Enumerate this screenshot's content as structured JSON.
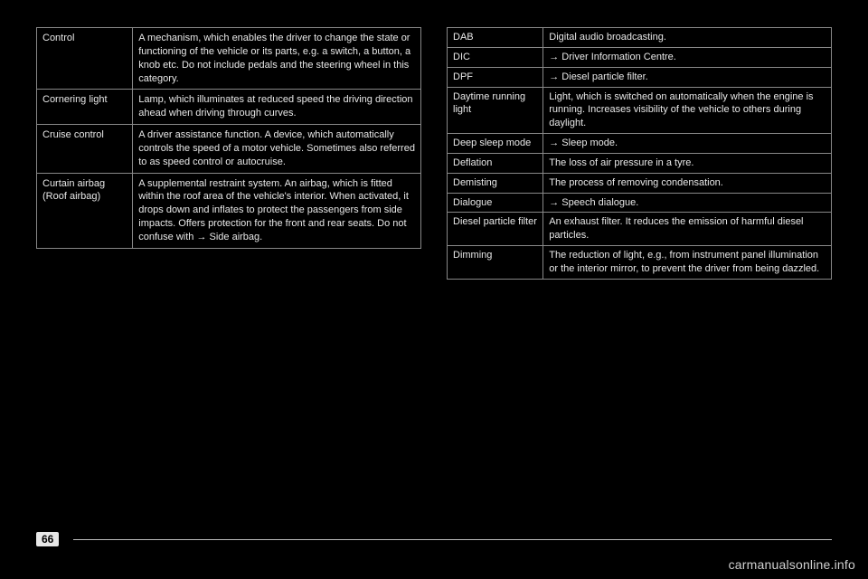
{
  "page_number": "66",
  "watermark": "carmanualsonline.info",
  "left_table": {
    "rows": [
      {
        "term": "Control",
        "def": "A mechanism, which enables the driver to change the state or functioning of the vehicle or its parts, e.g. a switch, a button, a knob etc. Do not include pedals and the steering wheel in this category."
      },
      {
        "term": "Cornering light",
        "def": "Lamp, which illuminates at reduced speed the driving direction ahead when driving through curves."
      },
      {
        "term": "Cruise control",
        "def": "A driver assistance function. A device, which automatically controls the speed of a motor vehicle. Sometimes also referred to as speed control or autocruise."
      },
      {
        "term": "Curtain airbag (Roof airbag)",
        "def": "A supplemental restraint system. An airbag, which is fitted within the roof area of the vehicle's interior. When activated, it drops down and inflates to protect the passengers from side impacts. Offers protection for the front and rear seats. Do not confuse with → Side airbag."
      }
    ]
  },
  "right_table": {
    "rows": [
      {
        "term": "DAB",
        "def": "Digital audio broadcasting."
      },
      {
        "term": "DIC",
        "def": "→ Driver Information Centre."
      },
      {
        "term": "DPF",
        "def": "→ Diesel particle filter."
      },
      {
        "term": "Daytime running light",
        "def": "Light, which is switched on automatically when the engine is running. Increases visibility of the vehicle to others during daylight."
      },
      {
        "term": "Deep sleep mode",
        "def": "→ Sleep mode."
      },
      {
        "term": "Deflation",
        "def": "The loss of air pressure in a tyre."
      },
      {
        "term": "Demisting",
        "def": "The process of removing condensation."
      },
      {
        "term": "Dialogue",
        "def": "→ Speech dialogue."
      },
      {
        "term": "Diesel particle filter",
        "def": "An exhaust filter. It reduces the emission of harmful diesel particles."
      },
      {
        "term": "Dimming",
        "def": "The reduction of light, e.g., from instrument panel illumination or the interior mirror, to prevent the driver from being dazzled."
      }
    ]
  }
}
